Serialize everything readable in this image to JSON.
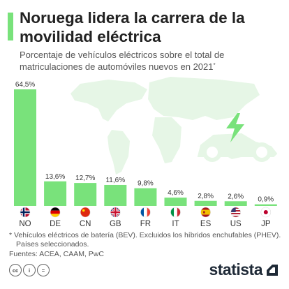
{
  "title": "Noruega lidera la carrera de la movilidad eléctrica",
  "subtitle": "Porcentaje de vehículos eléctricos sobre el total de matriculaciones de automóviles nuevos en 2021",
  "subtitle_mark": "*",
  "footnote_line1": "* Vehículos eléctricos de batería (BEV). Excluidos los híbridos enchufables (PHEV).",
  "footnote_line2": "Países seleccionados.",
  "sources": "Fuentes: ACEA, CAAM, PwC",
  "brand": "statista",
  "license_icons": [
    "cc-icon",
    "by-icon",
    "nd-icon"
  ],
  "colors": {
    "bar": "#79e27b",
    "accent": "#79e27b",
    "map": "#e6f6e6",
    "text": "#222222"
  },
  "chart_data": {
    "type": "bar",
    "categories": [
      "NO",
      "DE",
      "CN",
      "GB",
      "FR",
      "IT",
      "ES",
      "US",
      "JP"
    ],
    "values": [
      64.5,
      13.6,
      12.7,
      11.6,
      9.8,
      4.6,
      2.8,
      2.6,
      0.9
    ],
    "value_labels": [
      "64,5%",
      "13,6%",
      "12,7%",
      "11,6%",
      "9,8%",
      "4,6%",
      "2,8%",
      "2,6%",
      "0,9%"
    ],
    "flag_icons": [
      "flag-norway-icon",
      "flag-germany-icon",
      "flag-china-icon",
      "flag-uk-icon",
      "flag-france-icon",
      "flag-italy-icon",
      "flag-spain-icon",
      "flag-usa-icon",
      "flag-japan-icon"
    ],
    "ylim": [
      0,
      64.5
    ],
    "grid": false,
    "legend": "none"
  }
}
